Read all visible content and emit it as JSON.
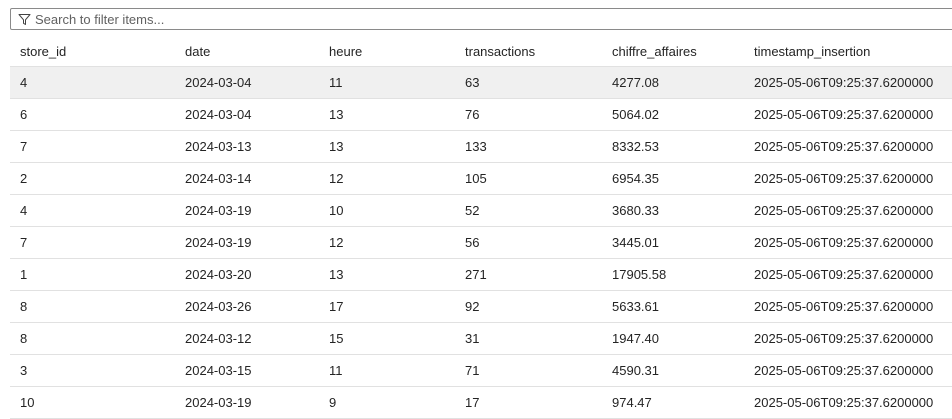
{
  "filter": {
    "placeholder": "Search to filter items..."
  },
  "table": {
    "columns": [
      "store_id",
      "date",
      "heure",
      "transactions",
      "chiffre_affaires",
      "timestamp_insertion"
    ],
    "rows": [
      [
        "4",
        "2024-03-04",
        "11",
        "63",
        "4277.08",
        "2025-05-06T09:25:37.6200000"
      ],
      [
        "6",
        "2024-03-04",
        "13",
        "76",
        "5064.02",
        "2025-05-06T09:25:37.6200000"
      ],
      [
        "7",
        "2024-03-13",
        "13",
        "133",
        "8332.53",
        "2025-05-06T09:25:37.6200000"
      ],
      [
        "2",
        "2024-03-14",
        "12",
        "105",
        "6954.35",
        "2025-05-06T09:25:37.6200000"
      ],
      [
        "4",
        "2024-03-19",
        "10",
        "52",
        "3680.33",
        "2025-05-06T09:25:37.6200000"
      ],
      [
        "7",
        "2024-03-19",
        "12",
        "56",
        "3445.01",
        "2025-05-06T09:25:37.6200000"
      ],
      [
        "1",
        "2024-03-20",
        "13",
        "271",
        "17905.58",
        "2025-05-06T09:25:37.6200000"
      ],
      [
        "8",
        "2024-03-26",
        "17",
        "92",
        "5633.61",
        "2025-05-06T09:25:37.6200000"
      ],
      [
        "8",
        "2024-03-12",
        "15",
        "31",
        "1947.40",
        "2025-05-06T09:25:37.6200000"
      ],
      [
        "3",
        "2024-03-15",
        "11",
        "71",
        "4590.31",
        "2025-05-06T09:25:37.6200000"
      ],
      [
        "10",
        "2024-03-19",
        "9",
        "17",
        "974.47",
        "2025-05-06T09:25:37.6200000"
      ]
    ]
  }
}
